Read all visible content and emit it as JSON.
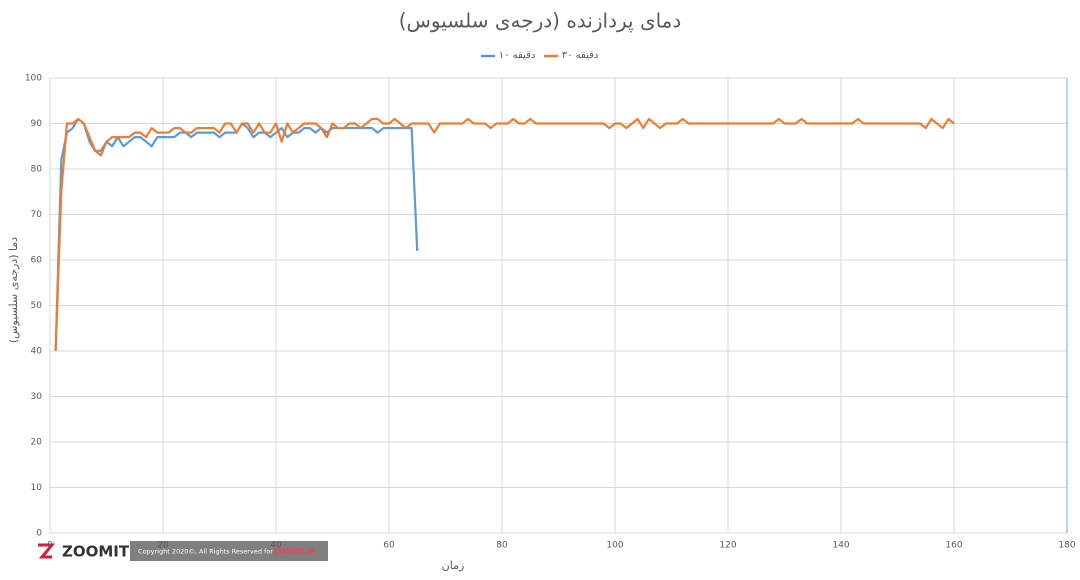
{
  "chart_data": {
    "type": "line",
    "title": "دمای پردازنده (درجه‌ی سلسیوس)",
    "x_label": "زمان",
    "y_label": "دما (درجه‌ی سلسیوس)",
    "xlim": [
      0,
      180
    ],
    "xticks": [
      0,
      20,
      40,
      60,
      80,
      100,
      120,
      140,
      160,
      180
    ],
    "ylim": [
      0,
      100
    ],
    "yticks": [
      0,
      10,
      20,
      30,
      40,
      50,
      60,
      70,
      80,
      90,
      100
    ],
    "grid": true,
    "legend": "top",
    "series": [
      {
        "name": "۱۰ دقیقه",
        "color": "#5b9bd5",
        "x": [
          1,
          2,
          3,
          4,
          5,
          6,
          7,
          8,
          9,
          10,
          11,
          12,
          13,
          14,
          15,
          16,
          17,
          18,
          19,
          20,
          21,
          22,
          23,
          24,
          25,
          26,
          27,
          28,
          29,
          30,
          31,
          32,
          33,
          34,
          35,
          36,
          37,
          38,
          39,
          40,
          41,
          42,
          43,
          44,
          45,
          46,
          47,
          48,
          49,
          50,
          51,
          52,
          53,
          54,
          55,
          56,
          57,
          58,
          59,
          60,
          61,
          62,
          63,
          64,
          65
        ],
        "values": [
          40,
          82,
          88,
          89,
          91,
          90,
          86,
          84,
          84,
          86,
          85,
          87,
          85,
          86,
          87,
          87,
          86,
          85,
          87,
          87,
          87,
          87,
          88,
          88,
          87,
          88,
          88,
          88,
          88,
          87,
          88,
          88,
          88,
          90,
          89,
          87,
          88,
          88,
          87,
          88,
          89,
          87,
          88,
          88,
          89,
          89,
          88,
          89,
          88,
          89,
          89,
          89,
          89,
          89,
          89,
          89,
          89,
          88,
          89,
          89,
          89,
          89,
          89,
          89,
          62
        ]
      },
      {
        "name": "۳۰ دقیقه",
        "color": "#ed7d31",
        "x": [
          1,
          2,
          3,
          4,
          5,
          6,
          7,
          8,
          9,
          10,
          11,
          12,
          13,
          14,
          15,
          16,
          17,
          18,
          19,
          20,
          21,
          22,
          23,
          24,
          25,
          26,
          27,
          28,
          29,
          30,
          31,
          32,
          33,
          34,
          35,
          36,
          37,
          38,
          39,
          40,
          41,
          42,
          43,
          44,
          45,
          46,
          47,
          48,
          49,
          50,
          51,
          52,
          53,
          54,
          55,
          56,
          57,
          58,
          59,
          60,
          61,
          62,
          63,
          64,
          65,
          66,
          67,
          68,
          69,
          70,
          71,
          72,
          73,
          74,
          75,
          76,
          77,
          78,
          79,
          80,
          81,
          82,
          83,
          84,
          85,
          86,
          87,
          88,
          89,
          90,
          91,
          92,
          93,
          94,
          95,
          96,
          97,
          98,
          99,
          100,
          101,
          102,
          103,
          104,
          105,
          106,
          107,
          108,
          109,
          110,
          111,
          112,
          113,
          114,
          115,
          116,
          117,
          118,
          119,
          120,
          121,
          122,
          123,
          124,
          125,
          126,
          127,
          128,
          129,
          130,
          131,
          132,
          133,
          134,
          135,
          136,
          137,
          138,
          139,
          140,
          141,
          142,
          143,
          144,
          145,
          146,
          147,
          148,
          149,
          150,
          151,
          152,
          153,
          154,
          155,
          156,
          157,
          158,
          159,
          160
        ],
        "values": [
          40,
          75,
          90,
          90,
          91,
          90,
          87,
          84,
          83,
          86,
          87,
          87,
          87,
          87,
          88,
          88,
          87,
          89,
          88,
          88,
          88,
          89,
          89,
          88,
          88,
          89,
          89,
          89,
          89,
          88,
          90,
          90,
          88,
          90,
          90,
          88,
          90,
          88,
          88,
          90,
          86,
          90,
          88,
          89,
          90,
          90,
          90,
          89,
          87,
          90,
          89,
          89,
          90,
          90,
          89,
          90,
          91,
          91,
          90,
          90,
          91,
          90,
          89,
          90,
          90,
          90,
          90,
          88,
          90,
          90,
          90,
          90,
          90,
          91,
          90,
          90,
          90,
          89,
          90,
          90,
          90,
          91,
          90,
          90,
          91,
          90,
          90,
          90,
          90,
          90,
          90,
          90,
          90,
          90,
          90,
          90,
          90,
          90,
          89,
          90,
          90,
          89,
          90,
          91,
          89,
          91,
          90,
          89,
          90,
          90,
          90,
          91,
          90,
          90,
          90,
          90,
          90,
          90,
          90,
          90,
          90,
          90,
          90,
          90,
          90,
          90,
          90,
          90,
          91,
          90,
          90,
          90,
          91,
          90,
          90,
          90,
          90,
          90,
          90,
          90,
          90,
          90,
          91,
          90,
          90,
          90,
          90,
          90,
          90,
          90,
          90,
          90,
          90,
          90,
          89,
          91,
          90,
          89,
          91,
          90
        ]
      }
    ]
  },
  "watermark": {
    "logo": "ZOOMIT",
    "copyright": "Copyright 2020©, All Rights Reserved for",
    "site": "ZOOMIT.IR"
  }
}
